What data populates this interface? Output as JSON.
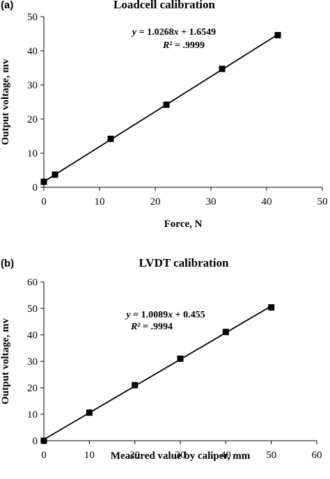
{
  "chart_data": [
    {
      "type": "scatter",
      "panel_label": "(a)",
      "title": "Loadcell calibration",
      "xlabel": "Force, N",
      "ylabel": "Output voltage, mv",
      "xlim": [
        0,
        50
      ],
      "ylim": [
        0,
        50
      ],
      "xticks": [
        "0",
        "10",
        "20",
        "30",
        "40",
        "50"
      ],
      "yticks": [
        "0",
        "10",
        "20",
        "30",
        "40",
        "50"
      ],
      "grid": false,
      "series": [
        {
          "x": [
            0,
            2,
            12,
            22,
            32,
            42
          ],
          "y": [
            1.6,
            3.7,
            14.2,
            24.2,
            34.7,
            44.6
          ]
        }
      ],
      "trendline": {
        "slope": 1.0268,
        "intercept": 1.6549,
        "x_range": [
          0,
          42
        ]
      },
      "equation": "y = 1.0268x + 1.6549",
      "r_squared": "R² = .9999"
    },
    {
      "type": "scatter",
      "panel_label": "(b)",
      "title": "LVDT calibration",
      "xlabel": "Measured value by caliper, mm",
      "ylabel": "Output voltage, mv",
      "xlim": [
        0,
        60
      ],
      "ylim": [
        0,
        60
      ],
      "xticks": [
        "0",
        "10",
        "20",
        "30",
        "40",
        "50",
        "60"
      ],
      "yticks": [
        "0",
        "10",
        "20",
        "30",
        "40",
        "50",
        "60"
      ],
      "grid": false,
      "series": [
        {
          "x": [
            0,
            10,
            20,
            30,
            40,
            50
          ],
          "y": [
            0,
            10.6,
            21.0,
            31.0,
            41.1,
            50.4
          ]
        }
      ],
      "trendline": {
        "slope": 1.0089,
        "intercept": 0.455,
        "x_range": [
          0,
          50
        ]
      },
      "equation": "y = 1.0089x + 0.455",
      "r_squared": "R² = .9994"
    }
  ]
}
